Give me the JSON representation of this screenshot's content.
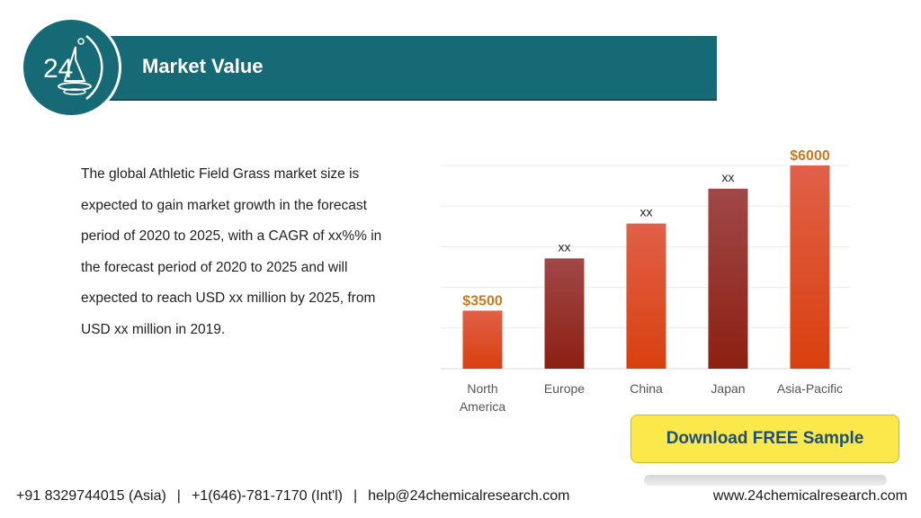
{
  "header": {
    "logo_text": "24",
    "title": "Market Value"
  },
  "intro": {
    "text": "The global Athletic Field Grass market size is expected to gain market growth in the forecast period of 2020 to 2025, with a CAGR of xx%% in the forecast period of 2020 to 2025 and will expected to reach USD xx million by 2025, from USD xx million in 2019."
  },
  "chart_data": {
    "type": "bar",
    "categories": [
      "North America",
      "Europe",
      "China",
      "Japan",
      "Asia-Pacific"
    ],
    "category_lines": [
      [
        "North",
        "America"
      ],
      [
        "Europe"
      ],
      [
        "China"
      ],
      [
        "Japan"
      ],
      [
        "Asia-Pacific"
      ]
    ],
    "values": [
      3500,
      4400,
      5000,
      5600,
      6000
    ],
    "data_labels": [
      "$3500",
      "xx",
      "xx",
      "xx",
      "$6000"
    ],
    "ylim": [
      2500,
      6000
    ],
    "grid": true,
    "colors": {
      "bar_top": "#e06048",
      "bar_bottom": "#d9400e",
      "bar_dark_top": "#a04848",
      "bar_dark_bottom": "#8c1f12",
      "highlight_label": "#c87a20",
      "plain_label": "#222222"
    }
  },
  "cta": {
    "download_label": "Download FREE Sample"
  },
  "footer": {
    "phone_asia": "+91 8329744015 (Asia)",
    "phone_intl": "+1(646)-781-7170 (Int'l)",
    "email": "help@24chemicalresearch.com",
    "website": "www.24chemicalresearch.com",
    "separator": "|"
  }
}
